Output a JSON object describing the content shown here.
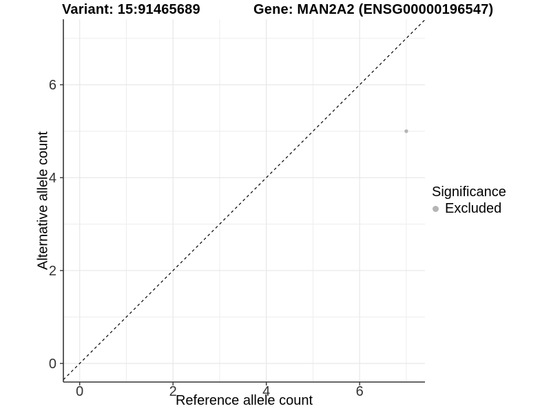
{
  "header": {
    "variant_title": "Variant: 15:91465689",
    "gene_title": "Gene: MAN2A2 (ENSG00000196547)"
  },
  "legend": {
    "title": "Significance",
    "items": [
      {
        "label": "Excluded",
        "color": "#b5b5b5"
      }
    ]
  },
  "colors": {
    "grid_major": "#e7e7e7",
    "grid_minor": "#ededed",
    "axis_line": "#333333",
    "tick_text": "#333333",
    "reference_line": "#000000",
    "background": "#ffffff"
  },
  "chart_data": {
    "type": "scatter",
    "title": "Variant: 15:91465689 | Gene: MAN2A2 (ENSG00000196547)",
    "xlabel": "Reference allele count",
    "ylabel": "Alternative allele count",
    "xlim": [
      -0.35,
      7.4
    ],
    "ylim": [
      -0.4,
      7.41
    ],
    "x_ticks": [
      0,
      2,
      4,
      6
    ],
    "y_ticks": [
      0,
      2,
      4,
      6
    ],
    "x_minor_grid": [
      1,
      3,
      5,
      7
    ],
    "y_minor_grid": [
      1,
      3,
      5,
      7
    ],
    "grid": true,
    "legend_position": "right",
    "series": [
      {
        "name": "Excluded",
        "color": "#b5b5b5",
        "points": [
          {
            "x": 7,
            "y": 5
          }
        ]
      }
    ],
    "reference_line": {
      "kind": "identity",
      "dashed": true,
      "color": "#000000"
    }
  }
}
